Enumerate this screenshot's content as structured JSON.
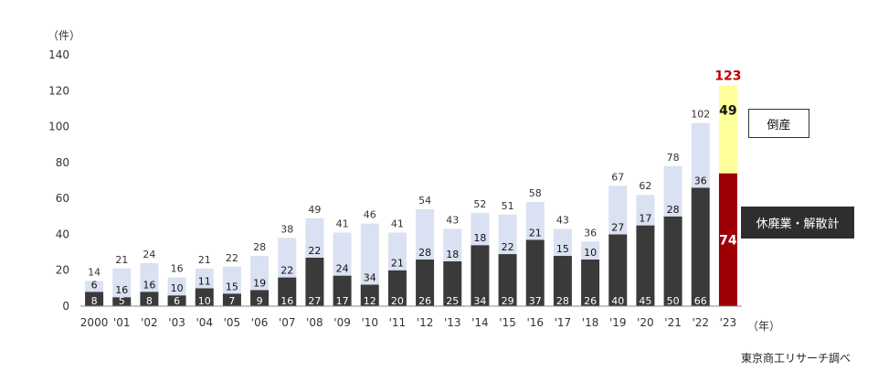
{
  "chart_data": {
    "type": "bar",
    "stacked": true,
    "title": "",
    "y_unit": "（件）",
    "x_unit": "（年）",
    "ylim": [
      0,
      140
    ],
    "yticks": [
      0,
      20,
      40,
      60,
      80,
      100,
      120,
      140
    ],
    "grid": false,
    "categories": [
      "2000",
      "'01",
      "'02",
      "'03",
      "'04",
      "'05",
      "'06",
      "'07",
      "'08",
      "'09",
      "'10",
      "'11",
      "'12",
      "'13",
      "'14",
      "'15",
      "'16",
      "'17",
      "'18",
      "'19",
      "'20",
      "'21",
      "'22",
      "'23"
    ],
    "series": [
      {
        "name": "休廃業・解散計",
        "values": [
          8,
          5,
          8,
          6,
          10,
          7,
          9,
          16,
          27,
          17,
          12,
          20,
          26,
          25,
          34,
          29,
          37,
          28,
          26,
          40,
          45,
          50,
          66,
          74
        ]
      },
      {
        "name": "倒産",
        "values": [
          6,
          16,
          16,
          10,
          11,
          15,
          19,
          22,
          22,
          24,
          34,
          21,
          28,
          18,
          18,
          22,
          21,
          15,
          10,
          27,
          17,
          28,
          36,
          49
        ]
      }
    ],
    "totals": [
      14,
      21,
      24,
      16,
      21,
      22,
      28,
      38,
      49,
      41,
      46,
      41,
      54,
      43,
      52,
      51,
      58,
      43,
      36,
      67,
      62,
      78,
      102,
      123
    ],
    "highlight_category": "'23",
    "colors": {
      "closure": "#3a3a3a",
      "bankruptcy": "#d9e1f2",
      "closure_highlight": "#9c0006",
      "bankruptcy_highlight": "#ffff99",
      "total_highlight": "#c00000"
    },
    "legend": [
      {
        "label": "倒産",
        "placement": "right"
      },
      {
        "label": "休廃業・解散計",
        "placement": "right"
      }
    ]
  },
  "source": "東京商工リサーチ調べ"
}
